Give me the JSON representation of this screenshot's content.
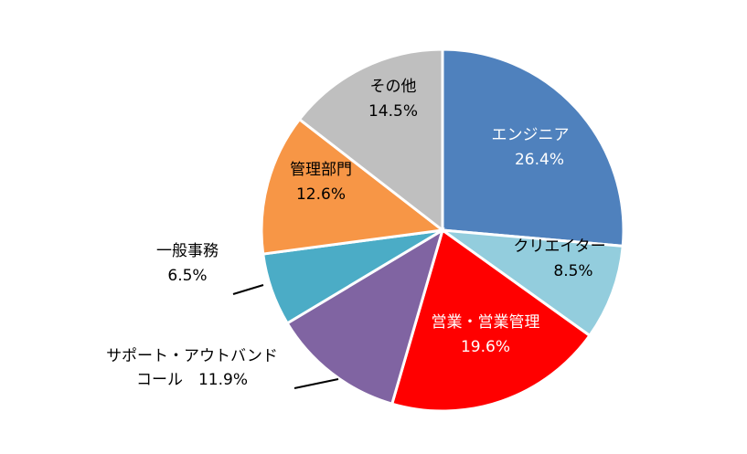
{
  "chart_data": {
    "type": "pie",
    "title": "",
    "slices": [
      {
        "label": "エンジニア",
        "value_text": "26.4%",
        "value": 26.4,
        "color": "#4F81BD",
        "text_color": "#ffffff"
      },
      {
        "label": "クリエイター",
        "value_text": "8.5%",
        "value": 8.5,
        "color": "#93CDDD",
        "text_color": "#000000"
      },
      {
        "label": "営業・営業管理",
        "value_text": "19.6%",
        "value": 19.6,
        "color": "#FF0000",
        "text_color": "#ffffff"
      },
      {
        "label": "サポート・アウトバンド",
        "label2": "コール",
        "value_text": "11.9%",
        "value": 11.9,
        "color": "#8064A2",
        "text_color": "#000000"
      },
      {
        "label": "一般事務",
        "value_text": "6.5%",
        "value": 6.5,
        "color": "#4BACC6",
        "text_color": "#000000"
      },
      {
        "label": "管理部門",
        "value_text": "12.6%",
        "value": 12.6,
        "color": "#F79646",
        "text_color": "#000000"
      },
      {
        "label": "その他",
        "value_text": "14.5%",
        "value": 14.5,
        "color": "#BFBFBF",
        "text_color": "#000000"
      }
    ]
  }
}
